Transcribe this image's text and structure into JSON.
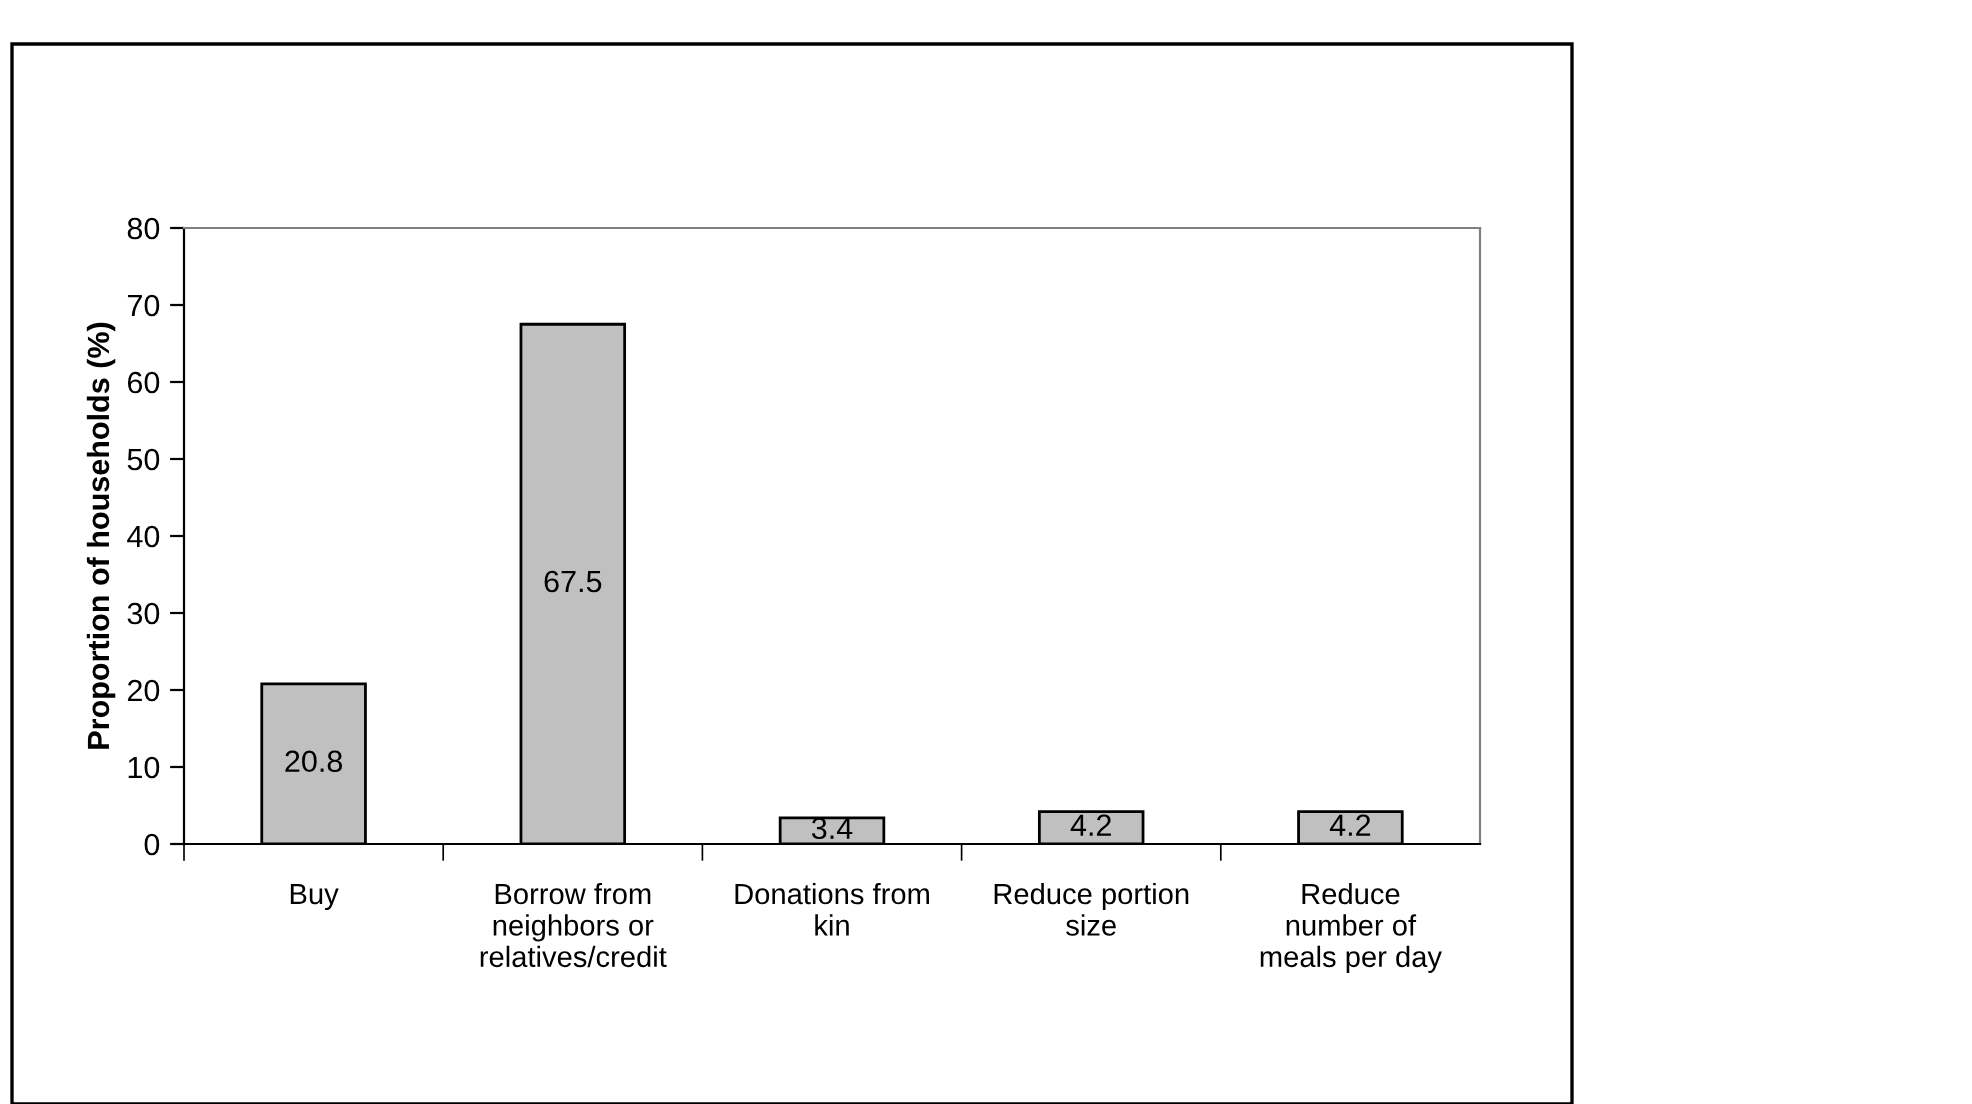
{
  "chart_data": {
    "type": "bar",
    "categories": [
      "Buy",
      "Borrow from\nneighbors or\nrelatives/credit",
      "Donations from\nkin",
      "Reduce portion\nsize",
      "Reduce\nnumber of\nmeals per day"
    ],
    "values": [
      20.8,
      67.5,
      3.4,
      4.2,
      4.2
    ],
    "color": "#c0c0c0",
    "ylabel": "Proportion of households (%)",
    "ylim": [
      0,
      80
    ],
    "yticks": [
      0,
      10,
      20,
      30,
      40,
      50,
      60,
      70,
      80
    ],
    "data_labels": true,
    "grid": false
  }
}
